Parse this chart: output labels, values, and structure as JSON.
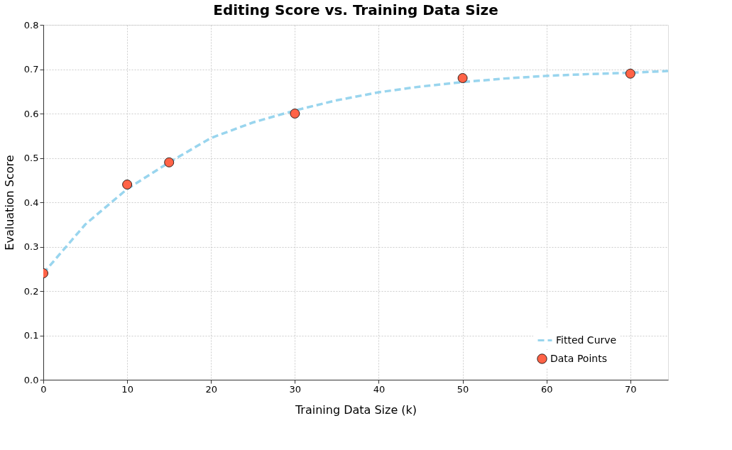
{
  "chart_data": {
    "type": "scatter",
    "title": "Editing Score vs. Training Data Size",
    "xlabel": "Training Data Size (k)",
    "ylabel": "Evaluation Score",
    "xlim": [
      0,
      74.5
    ],
    "xticks": [
      0,
      10,
      20,
      30,
      40,
      50,
      60,
      70
    ],
    "ylim": [
      0,
      0.8
    ],
    "yticks": [
      {
        "value": 0,
        "label": "0.0"
      },
      0.1,
      0.2,
      0.3,
      0.4,
      0.5,
      0.6,
      0.7,
      0.8
    ],
    "grid": true,
    "legend": "bottom right",
    "series": [
      {
        "name": "Fitted Curve",
        "type": "line",
        "line_style": "dashed",
        "marker": "none",
        "color": "#87ceeb",
        "x": [
          0,
          5,
          10,
          15,
          20,
          25,
          30,
          35,
          40,
          45,
          50,
          55,
          60,
          65,
          70,
          74.5
        ],
        "values": [
          0.24,
          0.35,
          0.43,
          0.49,
          0.545,
          0.58,
          0.607,
          0.63,
          0.648,
          0.661,
          0.671,
          0.679,
          0.685,
          0.689,
          0.692,
          0.696
        ]
      },
      {
        "name": "Data Points",
        "marker": "circle",
        "color": "#ff6347",
        "x": [
          0,
          10,
          15,
          30,
          50,
          70
        ],
        "values": [
          0.24,
          0.44,
          0.49,
          0.6,
          0.68,
          0.69
        ]
      }
    ]
  }
}
